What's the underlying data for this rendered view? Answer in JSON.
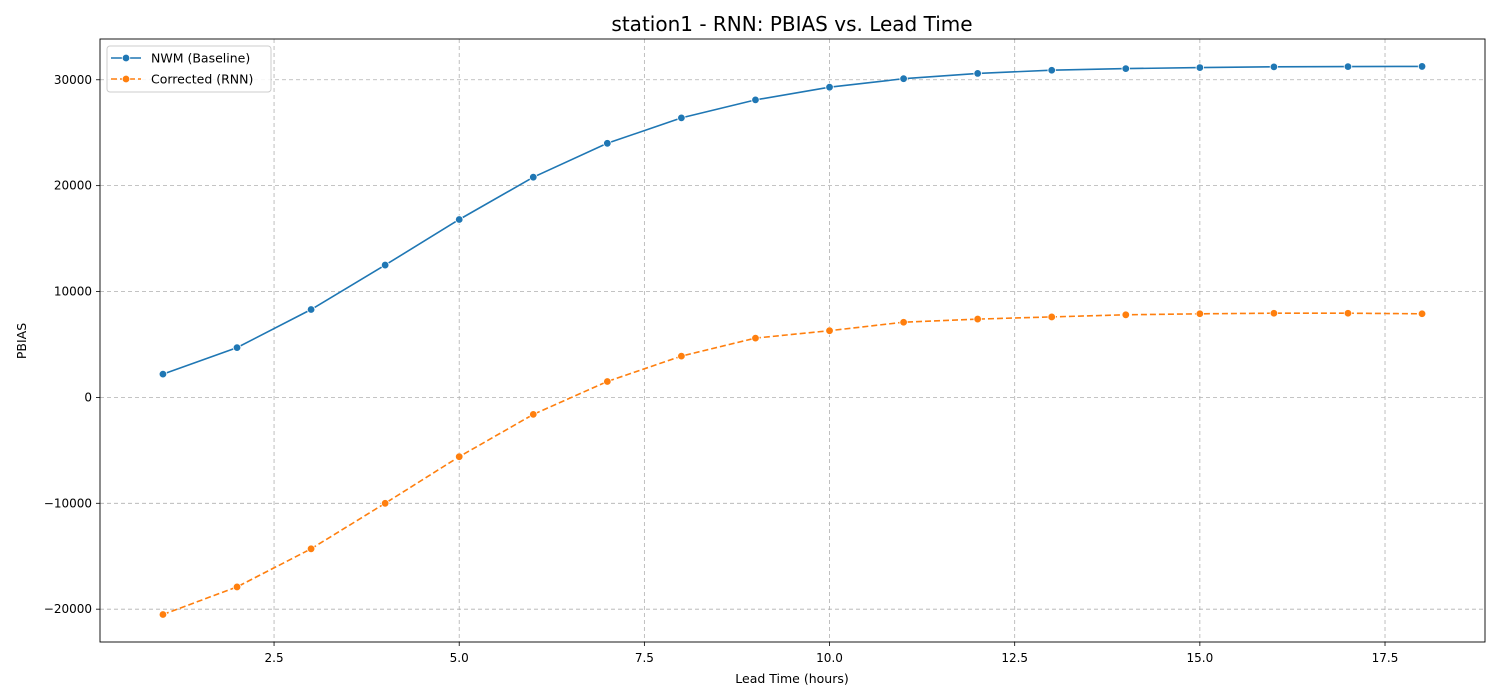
{
  "chart_data": {
    "type": "line",
    "title": "station1 - RNN: PBIAS vs. Lead Time",
    "xlabel": "Lead Time (hours)",
    "ylabel": "PBIAS",
    "xlim": [
      0.15,
      18.85
    ],
    "ylim": [
      -23100,
      33850
    ],
    "xticks": [
      2.5,
      5.0,
      7.5,
      10.0,
      12.5,
      15.0,
      17.5
    ],
    "xtick_labels": [
      "2.5",
      "5.0",
      "7.5",
      "10.0",
      "12.5",
      "15.0",
      "17.5"
    ],
    "yticks": [
      -20000,
      -10000,
      0,
      10000,
      20000,
      30000
    ],
    "ytick_labels": [
      "−20000",
      "−10000",
      "0",
      "10000",
      "20000",
      "30000"
    ],
    "grid": true,
    "legend_position": "top-left",
    "x": [
      1,
      2,
      3,
      4,
      5,
      6,
      7,
      8,
      9,
      10,
      11,
      12,
      13,
      14,
      15,
      16,
      17,
      18
    ],
    "series": [
      {
        "name": "NWM (Baseline)",
        "color": "#1f77b4",
        "line_style": "solid",
        "marker": "circle",
        "values": [
          2200,
          4700,
          8300,
          12500,
          16800,
          20800,
          24000,
          26400,
          28100,
          29300,
          30100,
          30600,
          30900,
          31050,
          31150,
          31220,
          31240,
          31260
        ]
      },
      {
        "name": "Corrected (RNN)",
        "color": "#ff7f0e",
        "line_style": "dashed",
        "marker": "circle",
        "values": [
          -20500,
          -17900,
          -14300,
          -10000,
          -5600,
          -1600,
          1500,
          3900,
          5600,
          6300,
          7100,
          7400,
          7600,
          7800,
          7900,
          7950,
          7950,
          7900
        ]
      }
    ]
  }
}
